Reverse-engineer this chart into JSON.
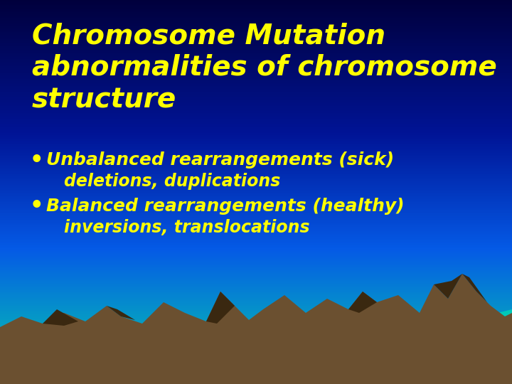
{
  "title_line1": "Chromosome Mutation",
  "title_line2": "abnormalities of chromosome",
  "title_line3": "structure",
  "bullet1_line1": "Unbalanced rearrangements (sick)",
  "bullet1_line2": "deletions, duplications",
  "bullet2_line1": "Balanced rearrangements (healthy)",
  "bullet2_line2": "inversions, translocations",
  "title_color": "#FFFF00",
  "bullet_color": "#FFFF00",
  "title_fontsize": 28,
  "bullet_fontsize": 18,
  "sub_bullet_fontsize": 17,
  "mountain_color": "#6B5030",
  "mountain_shadow_color": "#3A2810",
  "teal_color": "#00C8B8"
}
